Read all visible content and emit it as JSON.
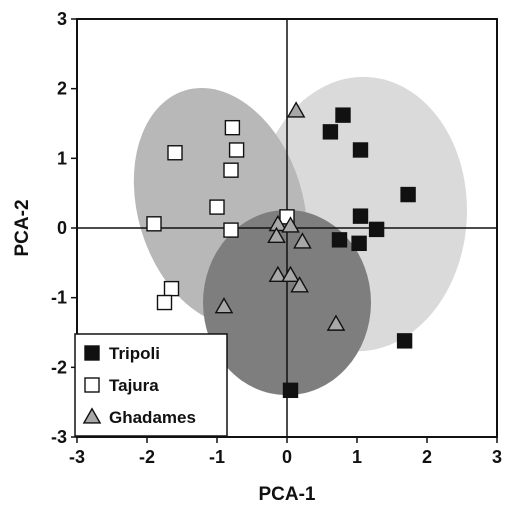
{
  "chart_data": {
    "type": "scatter",
    "title": "",
    "xlabel": "PCA-1",
    "ylabel": "PCA-2",
    "xlim": [
      -3,
      3
    ],
    "ylim": [
      -3,
      3
    ],
    "xticks": [
      -3,
      -2,
      -1,
      0,
      1,
      2,
      3
    ],
    "yticks": [
      -3,
      -2,
      -1,
      0,
      1,
      2,
      3
    ],
    "grid": false,
    "legend_position": "bottom-left",
    "series": [
      {
        "name": "Tripoli",
        "marker": "square",
        "color": "#111111",
        "points": [
          [
            0.8,
            1.62
          ],
          [
            0.62,
            1.38
          ],
          [
            1.05,
            1.12
          ],
          [
            1.73,
            0.48
          ],
          [
            1.05,
            0.17
          ],
          [
            1.28,
            -0.02
          ],
          [
            0.75,
            -0.17
          ],
          [
            1.03,
            -0.22
          ],
          [
            1.68,
            -1.62
          ],
          [
            0.05,
            -2.33
          ]
        ]
      },
      {
        "name": "Tajura",
        "marker": "square",
        "color": "#ffffff",
        "points": [
          [
            -0.78,
            1.44
          ],
          [
            -1.6,
            1.08
          ],
          [
            -0.72,
            1.12
          ],
          [
            -0.8,
            0.83
          ],
          [
            -1.0,
            0.3
          ],
          [
            0.0,
            0.16
          ],
          [
            -1.9,
            0.06
          ],
          [
            -0.8,
            -0.03
          ],
          [
            -1.65,
            -0.87
          ],
          [
            -1.75,
            -1.07
          ]
        ]
      },
      {
        "name": "Ghadames",
        "marker": "triangle",
        "color": "#a8a8a8",
        "points": [
          [
            0.13,
            1.68
          ],
          [
            -0.13,
            0.05
          ],
          [
            0.05,
            0.03
          ],
          [
            -0.15,
            -0.12
          ],
          [
            0.22,
            -0.2
          ],
          [
            -0.13,
            -0.68
          ],
          [
            0.05,
            -0.68
          ],
          [
            0.18,
            -0.83
          ],
          [
            -0.9,
            -1.13
          ],
          [
            0.7,
            -1.38
          ]
        ]
      }
    ],
    "ellipses": [
      {
        "group": "Tripoli",
        "cx": 1.05,
        "cy": 0.2,
        "rx": 1.52,
        "ry": 1.97,
        "angle": 3,
        "color": "#dadada"
      },
      {
        "group": "Tajura",
        "cx": -0.95,
        "cy": 0.3,
        "rx": 1.18,
        "ry": 1.75,
        "angle": -17,
        "color": "#b8b8b8"
      },
      {
        "group": "Ghadames",
        "cx": 0.0,
        "cy": -1.07,
        "rx": 1.2,
        "ry": 1.33,
        "angle": 0,
        "color": "#7e7e7e"
      }
    ]
  }
}
